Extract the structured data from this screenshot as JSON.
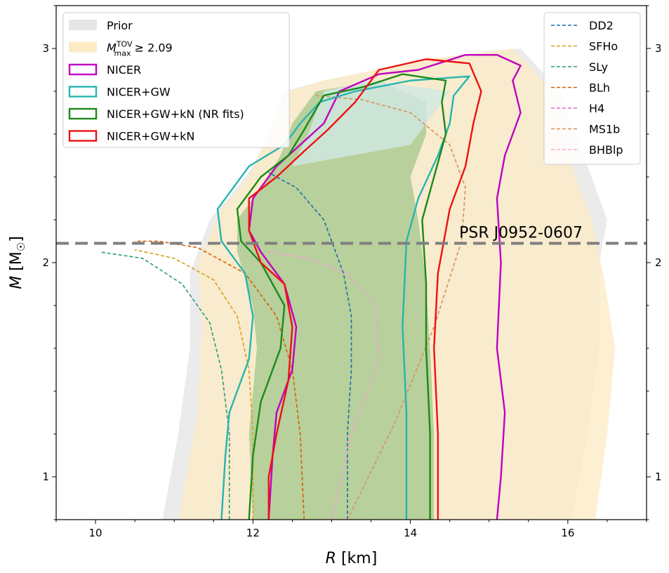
{
  "chart_data": {
    "type": "line",
    "title": "",
    "xlabel": "R [km]",
    "ylabel": "M [M☉]",
    "xlim": [
      9.5,
      17.0
    ],
    "ylim": [
      0.8,
      3.2
    ],
    "x_ticks": [
      10,
      12,
      14,
      16
    ],
    "y_ticks": [
      1,
      2,
      3
    ],
    "grid": false,
    "bands": [
      {
        "name": "Prior",
        "color": "#e6e6e6",
        "left": [
          [
            10.85,
            0.8
          ],
          [
            11.05,
            1.2
          ],
          [
            11.2,
            1.6
          ],
          [
            11.2,
            1.95
          ],
          [
            11.45,
            2.2
          ],
          [
            11.8,
            2.35
          ],
          [
            12.0,
            2.45
          ],
          [
            12.2,
            2.6
          ],
          [
            12.4,
            2.8
          ]
        ],
        "right": [
          [
            16.05,
            0.8
          ],
          [
            16.25,
            1.2
          ],
          [
            16.4,
            1.6
          ],
          [
            16.4,
            2.0
          ],
          [
            16.5,
            2.2
          ],
          [
            16.2,
            2.5
          ],
          [
            15.9,
            2.8
          ],
          [
            15.4,
            3.0
          ],
          [
            14.2,
            2.95
          ],
          [
            12.9,
            2.85
          ]
        ]
      },
      {
        "name": "M_max^TOV ≥ 2.09",
        "color": "#fdebc6",
        "left": [
          [
            11.05,
            0.8
          ],
          [
            11.3,
            1.3
          ],
          [
            11.35,
            1.7
          ],
          [
            11.3,
            2.0
          ],
          [
            11.6,
            2.25
          ],
          [
            11.95,
            2.4
          ],
          [
            12.2,
            2.6
          ],
          [
            12.45,
            2.8
          ]
        ],
        "right": [
          [
            16.35,
            0.8
          ],
          [
            16.5,
            1.2
          ],
          [
            16.6,
            1.6
          ],
          [
            16.45,
            1.95
          ],
          [
            16.3,
            2.2
          ],
          [
            16.0,
            2.5
          ],
          [
            15.8,
            2.8
          ],
          [
            15.3,
            3.0
          ],
          [
            14.2,
            2.95
          ],
          [
            12.9,
            2.85
          ]
        ]
      },
      {
        "name": "NICER+GW+kN (NR fits) region",
        "color": "#a7c98f",
        "left": [
          [
            12.0,
            0.8
          ],
          [
            11.95,
            1.2
          ],
          [
            12.05,
            1.6
          ],
          [
            12.0,
            1.8
          ],
          [
            11.8,
            2.05
          ],
          [
            11.8,
            2.2
          ],
          [
            12.1,
            2.35
          ],
          [
            12.35,
            2.5
          ],
          [
            12.5,
            2.65
          ],
          [
            12.8,
            2.8
          ]
        ],
        "right": [
          [
            14.3,
            0.8
          ],
          [
            14.3,
            1.2
          ],
          [
            14.25,
            1.6
          ],
          [
            14.2,
            1.9
          ],
          [
            14.1,
            2.2
          ],
          [
            14.0,
            2.4
          ],
          [
            14.2,
            2.6
          ],
          [
            14.2,
            2.75
          ],
          [
            13.6,
            2.85
          ],
          [
            12.8,
            2.8
          ]
        ]
      },
      {
        "name": "NICER+GW region",
        "color": "#cfe8e4",
        "left": [
          [
            12.5,
            2.45
          ],
          [
            12.7,
            2.6
          ],
          [
            12.9,
            2.8
          ]
        ],
        "right": [
          [
            14.0,
            2.55
          ],
          [
            14.5,
            2.8
          ],
          [
            13.5,
            2.85
          ],
          [
            12.9,
            2.8
          ]
        ]
      }
    ],
    "series": [
      {
        "name": "NICER",
        "color": "#c000c0",
        "style": "solid",
        "left": [
          [
            12.2,
            0.8
          ],
          [
            12.25,
            1.1
          ],
          [
            12.3,
            1.3
          ],
          [
            12.5,
            1.5
          ],
          [
            12.55,
            1.7
          ],
          [
            12.4,
            1.9
          ],
          [
            12.1,
            2.05
          ],
          [
            11.95,
            2.15
          ],
          [
            12.0,
            2.3
          ],
          [
            12.3,
            2.45
          ],
          [
            12.6,
            2.55
          ],
          [
            12.9,
            2.65
          ],
          [
            13.1,
            2.8
          ],
          [
            13.6,
            2.88
          ],
          [
            14.1,
            2.9
          ]
        ],
        "right": [
          [
            15.1,
            0.8
          ],
          [
            15.15,
            1.0
          ],
          [
            15.2,
            1.3
          ],
          [
            15.1,
            1.6
          ],
          [
            15.15,
            2.0
          ],
          [
            15.1,
            2.3
          ],
          [
            15.2,
            2.5
          ],
          [
            15.4,
            2.7
          ],
          [
            15.3,
            2.85
          ],
          [
            15.4,
            2.92
          ],
          [
            15.1,
            2.97
          ],
          [
            14.7,
            2.97
          ],
          [
            14.1,
            2.9
          ]
        ]
      },
      {
        "name": "NICER+GW",
        "color": "#26b5b0",
        "style": "solid",
        "left": [
          [
            11.6,
            0.8
          ],
          [
            11.65,
            1.1
          ],
          [
            11.7,
            1.3
          ],
          [
            11.95,
            1.55
          ],
          [
            12.0,
            1.75
          ],
          [
            11.9,
            1.95
          ],
          [
            11.6,
            2.1
          ],
          [
            11.55,
            2.25
          ],
          [
            11.95,
            2.45
          ],
          [
            12.4,
            2.55
          ],
          [
            12.6,
            2.65
          ],
          [
            12.85,
            2.75
          ],
          [
            13.3,
            2.8
          ],
          [
            14.0,
            2.85
          ],
          [
            14.75,
            2.87
          ]
        ],
        "right": [
          [
            13.95,
            0.8
          ],
          [
            13.95,
            1.3
          ],
          [
            13.9,
            1.7
          ],
          [
            13.95,
            2.1
          ],
          [
            14.1,
            2.3
          ],
          [
            14.35,
            2.5
          ],
          [
            14.5,
            2.65
          ],
          [
            14.55,
            2.78
          ],
          [
            14.75,
            2.87
          ]
        ]
      },
      {
        "name": "NICER+GW+kN (NR fits)",
        "color": "#1a8a1a",
        "style": "solid",
        "left": [
          [
            11.95,
            0.8
          ],
          [
            12.0,
            1.1
          ],
          [
            12.1,
            1.35
          ],
          [
            12.35,
            1.6
          ],
          [
            12.4,
            1.8
          ],
          [
            12.1,
            2.0
          ],
          [
            11.85,
            2.1
          ],
          [
            11.8,
            2.25
          ],
          [
            12.1,
            2.4
          ],
          [
            12.45,
            2.5
          ],
          [
            12.65,
            2.62
          ],
          [
            12.9,
            2.78
          ],
          [
            13.4,
            2.82
          ],
          [
            13.9,
            2.88
          ]
        ],
        "right": [
          [
            14.25,
            0.8
          ],
          [
            14.25,
            1.2
          ],
          [
            14.2,
            1.6
          ],
          [
            14.2,
            1.9
          ],
          [
            14.15,
            2.2
          ],
          [
            14.3,
            2.4
          ],
          [
            14.45,
            2.6
          ],
          [
            14.4,
            2.75
          ],
          [
            14.45,
            2.85
          ],
          [
            13.9,
            2.88
          ]
        ]
      },
      {
        "name": "NICER+GW+kN",
        "color": "#ee1111",
        "style": "solid",
        "left": [
          [
            12.2,
            0.8
          ],
          [
            12.2,
            1.0
          ],
          [
            12.3,
            1.2
          ],
          [
            12.45,
            1.45
          ],
          [
            12.5,
            1.7
          ],
          [
            12.4,
            1.9
          ],
          [
            12.1,
            2.0
          ],
          [
            11.95,
            2.15
          ],
          [
            11.95,
            2.3
          ],
          [
            12.3,
            2.4
          ],
          [
            12.65,
            2.52
          ],
          [
            12.95,
            2.62
          ],
          [
            13.3,
            2.75
          ],
          [
            13.6,
            2.9
          ],
          [
            14.2,
            2.95
          ]
        ],
        "right": [
          [
            14.35,
            0.8
          ],
          [
            14.35,
            1.2
          ],
          [
            14.3,
            1.6
          ],
          [
            14.35,
            1.95
          ],
          [
            14.5,
            2.25
          ],
          [
            14.7,
            2.45
          ],
          [
            14.8,
            2.65
          ],
          [
            14.9,
            2.8
          ],
          [
            14.75,
            2.93
          ],
          [
            14.2,
            2.95
          ]
        ]
      }
    ],
    "eos": [
      {
        "name": "DD2",
        "color": "#1a6fa8",
        "points": [
          [
            13.2,
            0.8
          ],
          [
            13.2,
            1.2
          ],
          [
            13.25,
            1.5
          ],
          [
            13.25,
            1.75
          ],
          [
            13.15,
            1.95
          ],
          [
            12.9,
            2.2
          ],
          [
            12.55,
            2.35
          ],
          [
            12.2,
            2.42
          ]
        ]
      },
      {
        "name": "SFHo",
        "color": "#d4a017",
        "points": [
          [
            12.0,
            0.8
          ],
          [
            12.0,
            1.2
          ],
          [
            11.95,
            1.5
          ],
          [
            11.8,
            1.75
          ],
          [
            11.5,
            1.92
          ],
          [
            11.0,
            2.02
          ],
          [
            10.5,
            2.06
          ]
        ]
      },
      {
        "name": "SLy",
        "color": "#2a9d6f",
        "points": [
          [
            11.7,
            0.8
          ],
          [
            11.7,
            1.2
          ],
          [
            11.6,
            1.5
          ],
          [
            11.45,
            1.72
          ],
          [
            11.1,
            1.9
          ],
          [
            10.6,
            2.02
          ],
          [
            10.05,
            2.05
          ]
        ]
      },
      {
        "name": "BLh",
        "color": "#d65f00",
        "points": [
          [
            12.65,
            0.8
          ],
          [
            12.6,
            1.2
          ],
          [
            12.5,
            1.5
          ],
          [
            12.3,
            1.75
          ],
          [
            11.9,
            1.95
          ],
          [
            11.3,
            2.07
          ],
          [
            10.8,
            2.1
          ],
          [
            10.5,
            2.1
          ]
        ]
      },
      {
        "name": "H4",
        "color": "#d36fb8",
        "points": [
          [
            13.0,
            0.8
          ],
          [
            13.25,
            1.2
          ],
          [
            13.6,
            1.55
          ],
          [
            13.55,
            1.8
          ],
          [
            13.2,
            1.95
          ],
          [
            12.7,
            2.02
          ],
          [
            12.2,
            2.05
          ]
        ]
      },
      {
        "name": "MS1b",
        "color": "#d89060",
        "points": [
          [
            13.2,
            0.8
          ],
          [
            13.8,
            1.25
          ],
          [
            14.3,
            1.7
          ],
          [
            14.65,
            2.1
          ],
          [
            14.7,
            2.35
          ],
          [
            14.5,
            2.55
          ],
          [
            14.0,
            2.7
          ],
          [
            13.4,
            2.76
          ],
          [
            12.8,
            2.78
          ]
        ]
      },
      {
        "name": "BHBlp",
        "color": "#f5a8d8",
        "points": [
          [
            13.0,
            0.8
          ],
          [
            13.25,
            1.2
          ],
          [
            13.6,
            1.55
          ],
          [
            13.55,
            1.8
          ],
          [
            13.2,
            1.95
          ],
          [
            12.7,
            2.02
          ],
          [
            12.2,
            2.05
          ]
        ]
      }
    ],
    "hline": {
      "y": 2.09,
      "color": "#7f7f7f",
      "label": "PSR J0952-0607"
    },
    "legend_left": {
      "placement": "top-left",
      "entries": [
        {
          "label": "Prior",
          "kind": "patch",
          "color": "#e6e6e6"
        },
        {
          "label": "M_max^TOV ≥ 2.09",
          "kind": "patch",
          "color": "#fdebc6"
        },
        {
          "label": "NICER",
          "kind": "box",
          "color": "#c000c0"
        },
        {
          "label": "NICER+GW",
          "kind": "box",
          "color": "#26b5b0"
        },
        {
          "label": "NICER+GW+kN (NR fits)",
          "kind": "box",
          "color": "#1a8a1a"
        },
        {
          "label": "NICER+GW+kN",
          "kind": "box",
          "color": "#ee1111"
        }
      ]
    },
    "legend_right": {
      "placement": "top-right",
      "entries": [
        "DD2",
        "SFHo",
        "SLy",
        "BLh",
        "H4",
        "MS1b",
        "BHBlp"
      ]
    }
  }
}
